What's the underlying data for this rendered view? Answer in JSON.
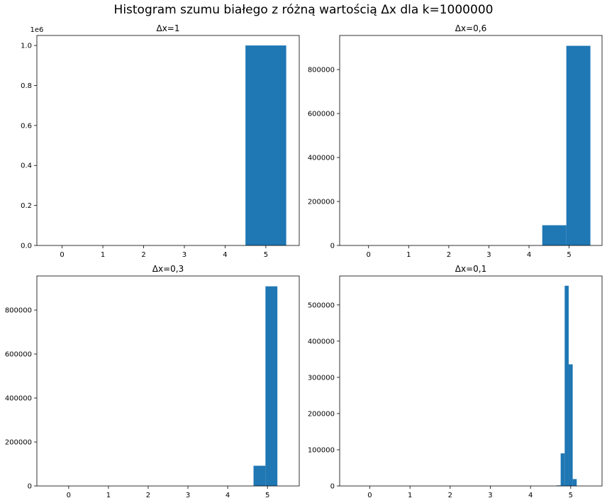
{
  "suptitle": "Histogram szumu białego z różną wartością Δx dla k=1000000",
  "colors": {
    "bar": "#1f77b4",
    "axis": "#000000",
    "background": "#ffffff"
  },
  "chart_data": [
    {
      "type": "bar",
      "title": "Δx=1",
      "xlabel": "",
      "ylabel": "",
      "xlim": [
        -0.62,
        5.82
      ],
      "ylim": [
        0,
        1050000
      ],
      "xticks": [
        0,
        1,
        2,
        3,
        4,
        5
      ],
      "yticks": [
        0,
        200000,
        400000,
        600000,
        800000,
        1000000
      ],
      "ytick_labels": [
        "0.0",
        "0.2",
        "0.4",
        "0.6",
        "0.8",
        "1.0"
      ],
      "offset_text": "1e6",
      "bins": [
        {
          "x0": 4.5,
          "x1": 5.5,
          "value": 1000000
        }
      ]
    },
    {
      "type": "bar",
      "title": "Δx=0,6",
      "xlabel": "",
      "ylabel": "",
      "xlim": [
        -0.72,
        5.82
      ],
      "ylim": [
        0,
        955000
      ],
      "xticks": [
        0,
        1,
        2,
        3,
        4,
        5
      ],
      "yticks": [
        0,
        200000,
        400000,
        600000,
        800000
      ],
      "ytick_labels": [
        "0",
        "200000",
        "400000",
        "600000",
        "800000"
      ],
      "offset_text": "",
      "bins": [
        {
          "x0": 4.33,
          "x1": 4.93,
          "value": 92000
        },
        {
          "x0": 4.93,
          "x1": 5.53,
          "value": 908000
        }
      ]
    },
    {
      "type": "bar",
      "title": "Δx=0,3",
      "xlabel": "",
      "ylabel": "",
      "xlim": [
        -0.8,
        5.8
      ],
      "ylim": [
        0,
        955000
      ],
      "xticks": [
        0,
        1,
        2,
        3,
        4,
        5
      ],
      "yticks": [
        0,
        200000,
        400000,
        600000,
        800000
      ],
      "ytick_labels": [
        "0",
        "200000",
        "400000",
        "600000",
        "800000"
      ],
      "offset_text": "",
      "bins": [
        {
          "x0": 4.65,
          "x1": 4.95,
          "value": 92000
        },
        {
          "x0": 4.95,
          "x1": 5.25,
          "value": 908000
        }
      ]
    },
    {
      "type": "bar",
      "title": "Δx=0,1",
      "xlabel": "",
      "ylabel": "",
      "xlim": [
        -0.75,
        5.78
      ],
      "ylim": [
        0,
        580000
      ],
      "xticks": [
        0,
        1,
        2,
        3,
        4,
        5
      ],
      "yticks": [
        0,
        100000,
        200000,
        300000,
        400000,
        500000
      ],
      "ytick_labels": [
        "0",
        "100000",
        "200000",
        "300000",
        "400000",
        "500000"
      ],
      "offset_text": "",
      "bins": [
        {
          "x0": 4.65,
          "x1": 4.75,
          "value": 1500
        },
        {
          "x0": 4.75,
          "x1": 4.85,
          "value": 90000
        },
        {
          "x0": 4.85,
          "x1": 4.95,
          "value": 553000
        },
        {
          "x0": 4.95,
          "x1": 5.05,
          "value": 336000
        },
        {
          "x0": 5.05,
          "x1": 5.15,
          "value": 19000
        }
      ]
    }
  ]
}
